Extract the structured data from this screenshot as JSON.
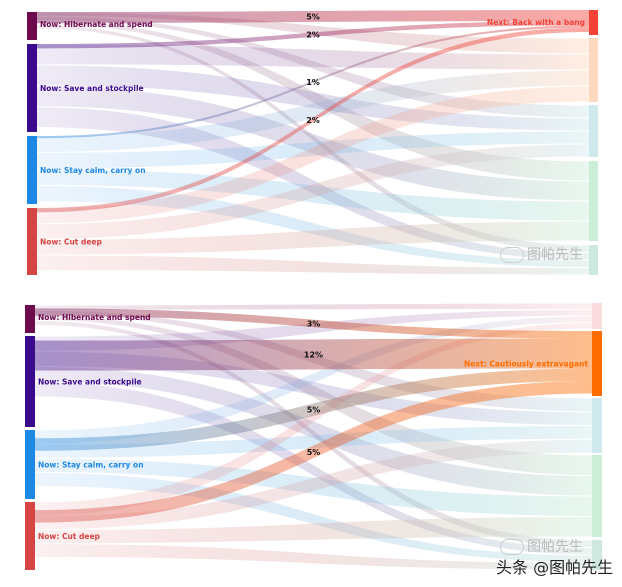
{
  "chart_data": [
    {
      "type": "sankey",
      "source_nodes": [
        {
          "label": "Now: Hibernate and spend",
          "color": "#6e0a4e"
        },
        {
          "label": "Now: Save and stockpile",
          "color": "#3b0a8c"
        },
        {
          "label": "Now: Stay calm, carry on",
          "color": "#1e88e5"
        },
        {
          "label": "Now: Cut deep",
          "color": "#d64545"
        }
      ],
      "target_nodes": [
        {
          "label": "Next: Back with a bang",
          "color": "#f44336",
          "highlighted": true
        },
        {
          "label": "",
          "color": "#ffd9bf"
        },
        {
          "label": "",
          "color": "#cfe9ec"
        },
        {
          "label": "",
          "color": "#cbeed8"
        },
        {
          "label": "",
          "color": "#cfe8df"
        }
      ],
      "highlighted_flows": [
        {
          "source": "Now: Hibernate and spend",
          "target": "Next: Back with a bang",
          "value": 5,
          "label": "5%"
        },
        {
          "source": "Now: Save and stockpile",
          "target": "Next: Back with a bang",
          "value": 2,
          "label": "2%"
        },
        {
          "source": "Now: Stay calm, carry on",
          "target": "Next: Back with a bang",
          "value": 1,
          "label": "1%"
        },
        {
          "source": "Now: Cut deep",
          "target": "Next: Back with a bang",
          "value": 2,
          "label": "2%"
        }
      ]
    },
    {
      "type": "sankey",
      "source_nodes": [
        {
          "label": "Now: Hibernate and spend",
          "color": "#6e0a4e"
        },
        {
          "label": "Now: Save and stockpile",
          "color": "#3b0a8c"
        },
        {
          "label": "Now: Stay calm, carry on",
          "color": "#1e88e5"
        },
        {
          "label": "Now: Cut deep",
          "color": "#d64545"
        }
      ],
      "target_nodes": [
        {
          "label": "",
          "color": "#fbdcdf"
        },
        {
          "label": "Next: Cautiously extravagant",
          "color": "#ff6d00",
          "highlighted": true
        },
        {
          "label": "",
          "color": "#cfe9ec"
        },
        {
          "label": "",
          "color": "#cbeed8"
        },
        {
          "label": "",
          "color": "#cfe8df"
        }
      ],
      "highlighted_flows": [
        {
          "source": "Now: Hibernate and spend",
          "target": "Next: Cautiously extravagant",
          "value": 3,
          "label": "3%"
        },
        {
          "source": "Now: Save and stockpile",
          "target": "Next: Cautiously extravagant",
          "value": 12,
          "label": "12%"
        },
        {
          "source": "Now: Stay calm, carry on",
          "target": "Next: Cautiously extravagant",
          "value": 5,
          "label": "5%"
        },
        {
          "source": "Now: Cut deep",
          "target": "Next: Cautiously extravagant",
          "value": 5,
          "label": "5%"
        }
      ]
    }
  ],
  "watermark": {
    "account": "图帕先生",
    "footer": "头条 @图帕先生",
    "icon": "wechat-icon"
  }
}
